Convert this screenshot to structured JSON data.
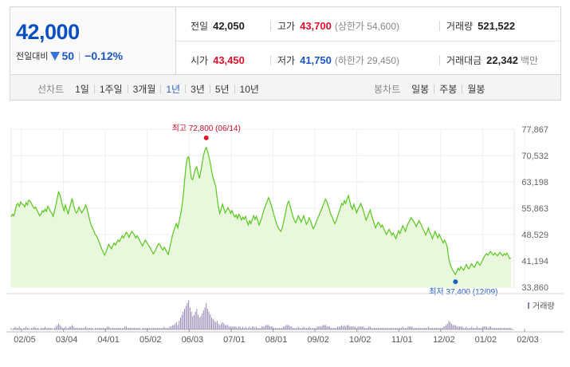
{
  "price": {
    "current": "42,000",
    "change_label": "전일대비",
    "change_value": "50",
    "change_pct": "−0.12%"
  },
  "stats": {
    "prev_close": {
      "label": "전일",
      "value": "42,050"
    },
    "high": {
      "label": "고가",
      "value": "43,700",
      "sub": "(상한가 54,600)"
    },
    "volume": {
      "label": "거래량",
      "value": "521,522"
    },
    "open": {
      "label": "시가",
      "value": "43,450"
    },
    "low": {
      "label": "저가",
      "value": "41,750",
      "sub": "(하한가 29,450)"
    },
    "amount": {
      "label": "거래대금",
      "value": "22,342",
      "unit": "백만"
    }
  },
  "toolbar": {
    "line_label": "선차트",
    "line_periods": [
      "1일",
      "1주일",
      "3개월",
      "1년",
      "3년",
      "5년",
      "10년"
    ],
    "active_period": "1년",
    "candle_label": "봉차트",
    "candle_periods": [
      "일봉",
      "주봉",
      "월봉"
    ]
  },
  "colors": {
    "price_blue": "#0a4fc2",
    "up_red": "#e0122c",
    "down_blue": "#1a56c4",
    "line_green": "#58c71d",
    "area_green": "#e9f8dc",
    "volume_purple": "#9080b0"
  },
  "chart_data": {
    "type": "area",
    "y_ticks": [
      77867,
      70532,
      63198,
      55863,
      48529,
      41194,
      33860
    ],
    "y_tick_labels": [
      "77,867",
      "70,532",
      "63,198",
      "55,863",
      "48,529",
      "41,194",
      "33,860"
    ],
    "ylim": [
      33860,
      77867
    ],
    "x_tick_labels": [
      "02/05",
      "03/04",
      "04/01",
      "05/02",
      "06/03",
      "07/01",
      "08/01",
      "09/02",
      "10/02",
      "11/01",
      "12/02",
      "01/02",
      "02/03"
    ],
    "high_annotation": "최고 72,800 (06/14)",
    "low_annotation": "최저 37,400 (12/09)",
    "high_value": 72800,
    "low_value": 37400,
    "volume_legend": "거래량",
    "price_series": [
      53500,
      54200,
      53800,
      55200,
      56800,
      57200,
      56400,
      57600,
      57000,
      56900,
      56200,
      57400,
      56800,
      58100,
      57800,
      57200,
      56400,
      55800,
      56200,
      55400,
      54600,
      53800,
      54200,
      55200,
      54800,
      55600,
      55000,
      56400,
      55800,
      55000,
      54400,
      53600,
      55200,
      56800,
      58600,
      60400,
      59600,
      58000,
      56400,
      55200,
      56800,
      55600,
      54200,
      55800,
      57200,
      58600,
      56800,
      55400,
      54600,
      55000,
      56200,
      55400,
      54600,
      55200,
      55800,
      56800,
      55800,
      54200,
      52600,
      51200,
      50400,
      49600,
      48600,
      48200,
      47400,
      46400,
      45400,
      44400,
      43600,
      42800,
      43600,
      44800,
      45800,
      45200,
      44600,
      45400,
      46200,
      45600,
      46400,
      47000,
      46600,
      47400,
      48200,
      47600,
      48400,
      49200,
      48600,
      47800,
      48600,
      49400,
      49000,
      48400,
      47600,
      48200,
      47600,
      46800,
      46000,
      45400,
      46200,
      47000,
      46400,
      45800,
      45200,
      44600,
      43800,
      43200,
      43800,
      44600,
      45400,
      46000,
      45600,
      44800,
      44200,
      45000,
      44400,
      43600,
      43000,
      44800,
      46400,
      48200,
      49600,
      50600,
      51600,
      50400,
      52200,
      54000,
      56200,
      59200,
      63400,
      67400,
      69800,
      70200,
      67400,
      64200,
      63800,
      65400,
      66800,
      67400,
      65600,
      64200,
      66200,
      68400,
      70600,
      72000,
      72800,
      71600,
      70200,
      68400,
      66200,
      64400,
      63200,
      62000,
      58800,
      56200,
      54400,
      55600,
      57000,
      55800,
      54600,
      55200,
      56000,
      55400,
      54400,
      55200,
      54200,
      53400,
      54000,
      53000,
      54200,
      53600,
      52600,
      53400,
      52800,
      53600,
      52200,
      51200,
      52400,
      51600,
      52800,
      53800,
      52800,
      53600,
      52400,
      51200,
      52200,
      53200,
      54600,
      55800,
      56800,
      57800,
      58800,
      58000,
      56800,
      55400,
      54000,
      52800,
      51600,
      50600,
      50000,
      49400,
      50200,
      51800,
      53600,
      55400,
      57200,
      57800,
      56400,
      55000,
      53600,
      52600,
      51800,
      52600,
      53800,
      53000,
      52000,
      52800,
      53800,
      52600,
      51400,
      52000,
      53200,
      52400,
      51200,
      50200,
      50800,
      51800,
      52800,
      53600,
      54600,
      55400,
      56400,
      57400,
      58400,
      57800,
      56600,
      55400,
      54200,
      53400,
      52400,
      51600,
      52400,
      53600,
      54800,
      55800,
      57200,
      56800,
      58000,
      57200,
      58400,
      59400,
      57800,
      56200,
      55600,
      57000,
      55800,
      54600,
      55600,
      56200,
      57200,
      56400,
      55200,
      53800,
      52600,
      53400,
      54400,
      55400,
      54000,
      52800,
      51600,
      50400,
      51200,
      52000,
      51400,
      50600,
      51200,
      50200,
      49400,
      48600,
      49200,
      50000,
      49200,
      48400,
      49000,
      48200,
      47400,
      48600,
      49600,
      48800,
      49800,
      51000,
      50400,
      49400,
      50600,
      51600,
      52200,
      53200,
      52800,
      52200,
      51600,
      50800,
      51600,
      52400,
      51800,
      51000,
      50000,
      49400,
      48400,
      49200,
      50400,
      49200,
      48400,
      47400,
      48400,
      49400,
      48400,
      47600,
      48600,
      47800,
      47000,
      46200,
      47000,
      46200,
      45000,
      42000,
      40400,
      39400,
      38600,
      38000,
      37400,
      38200,
      39200,
      38600,
      39600,
      39000,
      38600,
      39400,
      40200,
      39400,
      39000,
      39800,
      40400,
      39800,
      39400,
      40200,
      41000,
      40600,
      40000,
      40600,
      41400,
      42200,
      42800,
      43200,
      42800,
      43400,
      43800,
      43200,
      42800,
      43400,
      43000,
      42600,
      43200,
      43600,
      43000,
      42600,
      43200,
      42800,
      43400,
      42600,
      41800,
      42000
    ],
    "volume_series": [
      1,
      0,
      1,
      2,
      1,
      1,
      2,
      1,
      0,
      1,
      1,
      2,
      1,
      1,
      0,
      1,
      1,
      2,
      1,
      1,
      1,
      0,
      1,
      1,
      1,
      2,
      1,
      1,
      1,
      1,
      1,
      0,
      1,
      2,
      3,
      4,
      3,
      2,
      1,
      1,
      2,
      1,
      1,
      2,
      2,
      3,
      2,
      1,
      1,
      1,
      1,
      1,
      1,
      1,
      1,
      2,
      1,
      1,
      1,
      1,
      1,
      0,
      1,
      1,
      1,
      1,
      1,
      1,
      1,
      1,
      1,
      2,
      2,
      1,
      1,
      1,
      1,
      1,
      1,
      1,
      1,
      1,
      1,
      1,
      2,
      2,
      1,
      1,
      1,
      1,
      1,
      1,
      1,
      1,
      1,
      1,
      0,
      1,
      1,
      1,
      1,
      1,
      1,
      1,
      1,
      1,
      1,
      1,
      1,
      1,
      1,
      1,
      1,
      2,
      1,
      1,
      1,
      2,
      2,
      3,
      3,
      4,
      5,
      3,
      6,
      8,
      10,
      12,
      14,
      16,
      18,
      20,
      15,
      12,
      9,
      10,
      12,
      14,
      10,
      8,
      9,
      11,
      13,
      15,
      18,
      14,
      12,
      10,
      8,
      7,
      6,
      5,
      6,
      4,
      3,
      4,
      5,
      4,
      3,
      3,
      3,
      2,
      2,
      2,
      2,
      2,
      2,
      1,
      2,
      2,
      1,
      2,
      1,
      2,
      1,
      1,
      2,
      1,
      2,
      2,
      1,
      2,
      1,
      1,
      1,
      2,
      2,
      2,
      3,
      3,
      3,
      2,
      2,
      2,
      1,
      1,
      1,
      1,
      1,
      1,
      1,
      2,
      2,
      3,
      3,
      3,
      2,
      2,
      1,
      1,
      1,
      1,
      2,
      1,
      1,
      1,
      2,
      1,
      1,
      1,
      2,
      1,
      1,
      1,
      1,
      1,
      2,
      2,
      2,
      2,
      3,
      3,
      3,
      2,
      2,
      2,
      1,
      1,
      1,
      1,
      1,
      2,
      2,
      2,
      3,
      2,
      3,
      2,
      3,
      3,
      2,
      2,
      2,
      2,
      2,
      1,
      2,
      2,
      2,
      2,
      2,
      1,
      1,
      1,
      2,
      2,
      1,
      1,
      1,
      1,
      1,
      1,
      1,
      1,
      1,
      1,
      1,
      1,
      1,
      1,
      1,
      1,
      1,
      1,
      1,
      1,
      1,
      1,
      1,
      2,
      1,
      1,
      1,
      2,
      2,
      2,
      2,
      1,
      1,
      1,
      1,
      1,
      1,
      1,
      1,
      1,
      1,
      1,
      2,
      1,
      1,
      1,
      1,
      1,
      1,
      1,
      1,
      1,
      1,
      2,
      2,
      3,
      4,
      6,
      5,
      4,
      3,
      3,
      3,
      2,
      2,
      2,
      2,
      2,
      1,
      1,
      2,
      1,
      1,
      1,
      2,
      1,
      1,
      1,
      2,
      1,
      1,
      1,
      2,
      2,
      2,
      2,
      1,
      2,
      2,
      1,
      1,
      1,
      1,
      1,
      1,
      1,
      1,
      1,
      1,
      1,
      1,
      1,
      1,
      1
    ]
  }
}
